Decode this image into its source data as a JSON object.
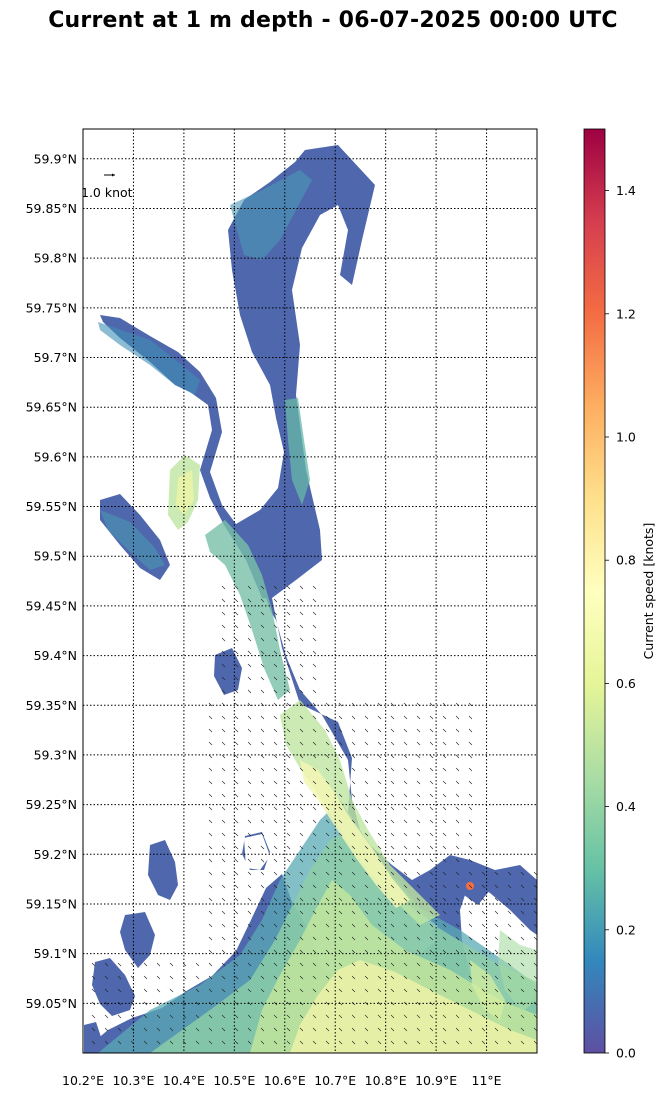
{
  "title": "Current at 1 m depth - 06-07-2025 00:00 UTC",
  "map": {
    "lon_range": [
      10.2,
      11.1
    ],
    "lat_range": [
      59.0,
      59.93
    ],
    "lon_ticks": [
      {
        "value": 10.2,
        "label": "10.2°E"
      },
      {
        "value": 10.3,
        "label": "10.3°E"
      },
      {
        "value": 10.4,
        "label": "10.4°E"
      },
      {
        "value": 10.5,
        "label": "10.5°E"
      },
      {
        "value": 10.6,
        "label": "10.6°E"
      },
      {
        "value": 10.7,
        "label": "10.7°E"
      },
      {
        "value": 10.8,
        "label": "10.8°E"
      },
      {
        "value": 10.9,
        "label": "10.9°E"
      },
      {
        "value": 11.0,
        "label": "11°E"
      }
    ],
    "lat_ticks": [
      {
        "value": 59.9,
        "label": "59.9°N"
      },
      {
        "value": 59.85,
        "label": "59.85°N"
      },
      {
        "value": 59.8,
        "label": "59.8°N"
      },
      {
        "value": 59.75,
        "label": "59.75°N"
      },
      {
        "value": 59.7,
        "label": "59.7°N"
      },
      {
        "value": 59.65,
        "label": "59.65°N"
      },
      {
        "value": 59.6,
        "label": "59.6°N"
      },
      {
        "value": 59.55,
        "label": "59.55°N"
      },
      {
        "value": 59.5,
        "label": "59.5°N"
      },
      {
        "value": 59.45,
        "label": "59.45°N"
      },
      {
        "value": 59.4,
        "label": "59.4°N"
      },
      {
        "value": 59.35,
        "label": "59.35°N"
      },
      {
        "value": 59.3,
        "label": "59.3°N"
      },
      {
        "value": 59.25,
        "label": "59.25°N"
      },
      {
        "value": 59.2,
        "label": "59.2°N"
      },
      {
        "value": 59.15,
        "label": "59.15°N"
      },
      {
        "value": 59.1,
        "label": "59.1°N"
      },
      {
        "value": 59.05,
        "label": "59.05°N"
      }
    ],
    "grid": true,
    "reference_vector_label": "1.0 knot"
  },
  "colorbar": {
    "label": "Current speed [knots]",
    "range": [
      0,
      1.5
    ],
    "colormap": "Spectral_r",
    "ticks": [
      {
        "value": 0.0,
        "label": "0.0"
      },
      {
        "value": 0.2,
        "label": "0.2"
      },
      {
        "value": 0.4,
        "label": "0.4"
      },
      {
        "value": 0.6,
        "label": "0.6"
      },
      {
        "value": 0.8,
        "label": "0.8"
      },
      {
        "value": 1.0,
        "label": "1.0"
      },
      {
        "value": 1.2,
        "label": "1.2"
      },
      {
        "value": 1.4,
        "label": "1.4"
      }
    ],
    "stops": [
      "#5e4fa2",
      "#3288bd",
      "#66c2a5",
      "#abdda4",
      "#e6f598",
      "#ffffbf",
      "#fee08b",
      "#fdae61",
      "#f46d43",
      "#d53e4f",
      "#9e0142"
    ]
  }
}
